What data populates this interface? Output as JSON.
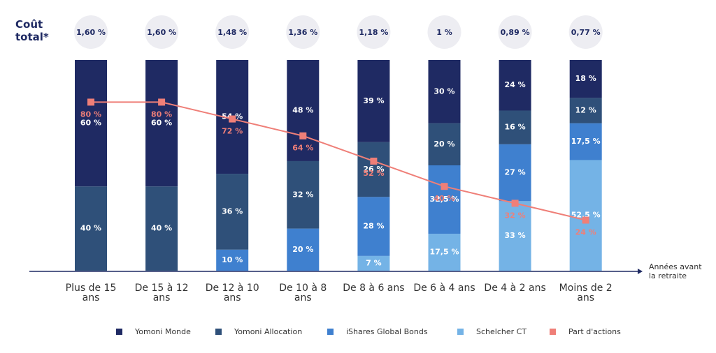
{
  "chart_data": {
    "type": "bar",
    "stacked": true,
    "categories": [
      "Plus de 15 ans",
      "De 15 à 12 ans",
      "De 12 à 10 ans",
      "De 10 à 8 ans",
      "De 8 à 6 ans",
      "De 6 à 4 ans",
      "De 4 à 2 ans",
      "Moins de 2 ans"
    ],
    "x_label": "Années avant la retraite",
    "ylim": [
      0,
      100
    ],
    "costs": {
      "label": "Coût total*",
      "values": [
        1.6,
        1.6,
        1.48,
        1.36,
        1.18,
        1,
        0.89,
        0.77
      ],
      "value_labels": [
        "1,60 %",
        "1,60 %",
        "1,48 %",
        "1,36 %",
        "1,18 %",
        "1 %",
        "0,89 %",
        "0,77 %"
      ]
    },
    "series": [
      {
        "name": "Yomoni Monde",
        "color": "#1f2a63",
        "values": [
          60,
          60,
          54,
          48,
          39,
          30,
          24,
          18
        ],
        "value_labels": [
          "60 %",
          "60 %",
          "54 %",
          "48 %",
          "39 %",
          "30 %",
          "24 %",
          "18 %"
        ]
      },
      {
        "name": "Yomoni Allocation",
        "color": "#2f5079",
        "values": [
          40,
          40,
          36,
          32,
          26,
          20,
          16,
          12
        ],
        "value_labels": [
          "40 %",
          "40 %",
          "36 %",
          "32 %",
          "26 %",
          "20 %",
          "16 %",
          "12 %"
        ]
      },
      {
        "name": "iShares Global Bonds",
        "color": "#3f80cf",
        "values": [
          null,
          null,
          10,
          20,
          28,
          32.5,
          27,
          17.5
        ],
        "value_labels": [
          null,
          null,
          "10 %",
          "20 %",
          "28 %",
          "32,5 %",
          "27 %",
          "17,5 %"
        ]
      },
      {
        "name": "Schelcher CT",
        "color": "#74b3e6",
        "values": [
          null,
          null,
          null,
          null,
          7,
          17.5,
          33,
          52.5
        ],
        "value_labels": [
          null,
          null,
          null,
          null,
          "7 %",
          "17,5 %",
          "33 %",
          "52,5 %"
        ]
      },
      {
        "name": "Part d'actions",
        "type": "line",
        "color": "#ef7f78",
        "values": [
          80,
          80,
          72,
          64,
          52,
          40,
          32,
          24
        ],
        "value_labels": [
          "80 %",
          "80 %",
          "72 %",
          "64 %",
          "52 %",
          "40 %",
          "32 %",
          "24 %"
        ]
      }
    ]
  }
}
